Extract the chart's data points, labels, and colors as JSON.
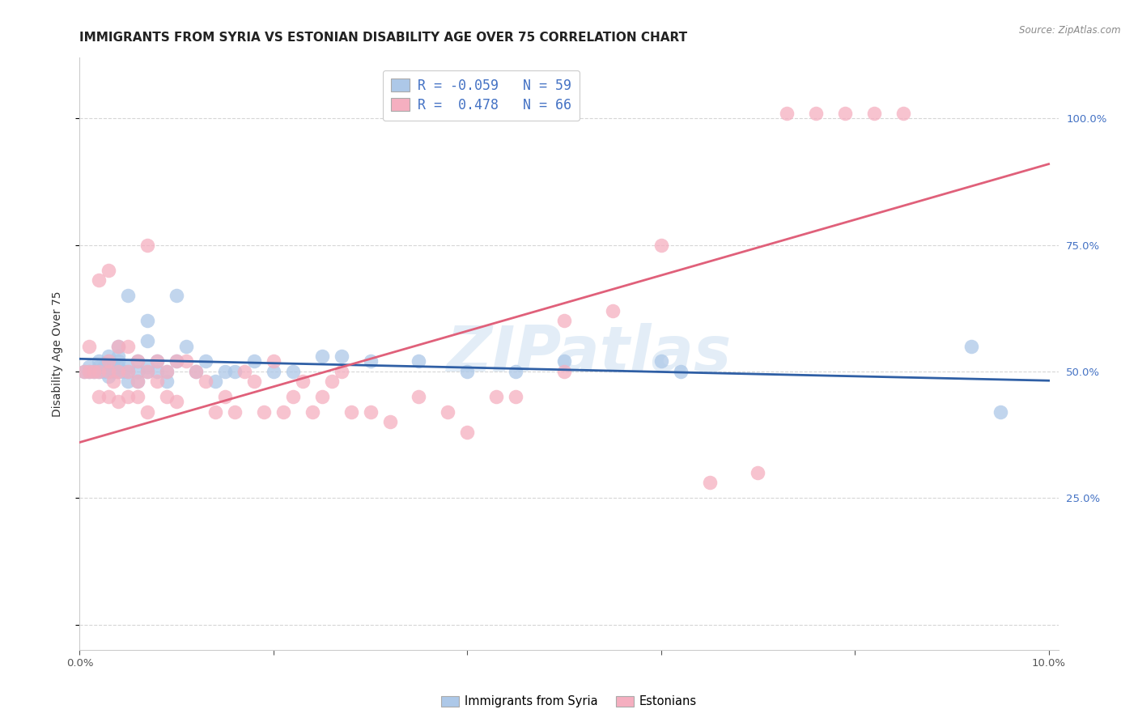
{
  "title": "IMMIGRANTS FROM SYRIA VS ESTONIAN DISABILITY AGE OVER 75 CORRELATION CHART",
  "source": "Source: ZipAtlas.com",
  "ylabel": "Disability Age Over 75",
  "watermark": "ZIPatlas",
  "legend_label1": "Immigrants from Syria",
  "legend_label2": "Estonians",
  "R1": -0.059,
  "N1": 59,
  "R2": 0.478,
  "N2": 66,
  "color1": "#adc8e8",
  "color2": "#f5afc0",
  "line_color1": "#2f5fa5",
  "line_color2": "#e0607a",
  "xlim_min": 0.0,
  "xlim_max": 0.101,
  "ylim_min": -0.05,
  "ylim_max": 1.12,
  "blue_line_y0": 0.525,
  "blue_line_y1": 0.482,
  "pink_line_y0": 0.36,
  "pink_line_y1": 0.91,
  "background_color": "#ffffff",
  "grid_color": "#cccccc",
  "title_fontsize": 11,
  "axis_label_fontsize": 10,
  "tick_fontsize": 9.5,
  "right_tick_color": "#4472c4",
  "source_color": "#888888",
  "syria_x": [
    0.0005,
    0.001,
    0.001,
    0.0015,
    0.002,
    0.002,
    0.002,
    0.0025,
    0.0025,
    0.003,
    0.003,
    0.003,
    0.003,
    0.003,
    0.0035,
    0.0035,
    0.004,
    0.004,
    0.004,
    0.004,
    0.004,
    0.0045,
    0.005,
    0.005,
    0.005,
    0.005,
    0.006,
    0.006,
    0.006,
    0.007,
    0.007,
    0.007,
    0.007,
    0.008,
    0.008,
    0.009,
    0.009,
    0.01,
    0.01,
    0.011,
    0.012,
    0.013,
    0.014,
    0.015,
    0.016,
    0.018,
    0.02,
    0.022,
    0.025,
    0.027,
    0.03,
    0.035,
    0.04,
    0.045,
    0.05,
    0.06,
    0.062,
    0.092,
    0.095
  ],
  "syria_y": [
    0.5,
    0.5,
    0.51,
    0.5,
    0.51,
    0.5,
    0.52,
    0.5,
    0.51,
    0.49,
    0.5,
    0.51,
    0.52,
    0.53,
    0.5,
    0.51,
    0.5,
    0.51,
    0.52,
    0.53,
    0.55,
    0.5,
    0.48,
    0.5,
    0.51,
    0.65,
    0.48,
    0.5,
    0.52,
    0.5,
    0.51,
    0.56,
    0.6,
    0.5,
    0.52,
    0.48,
    0.5,
    0.52,
    0.65,
    0.55,
    0.5,
    0.52,
    0.48,
    0.5,
    0.5,
    0.52,
    0.5,
    0.5,
    0.53,
    0.53,
    0.52,
    0.52,
    0.5,
    0.5,
    0.52,
    0.52,
    0.5,
    0.55,
    0.42
  ],
  "estonian_x": [
    0.0005,
    0.001,
    0.001,
    0.0015,
    0.002,
    0.002,
    0.002,
    0.003,
    0.003,
    0.003,
    0.003,
    0.0035,
    0.004,
    0.004,
    0.004,
    0.005,
    0.005,
    0.005,
    0.006,
    0.006,
    0.006,
    0.007,
    0.007,
    0.007,
    0.008,
    0.008,
    0.009,
    0.009,
    0.01,
    0.01,
    0.011,
    0.012,
    0.013,
    0.014,
    0.015,
    0.016,
    0.017,
    0.018,
    0.019,
    0.02,
    0.021,
    0.022,
    0.023,
    0.024,
    0.025,
    0.026,
    0.027,
    0.028,
    0.03,
    0.032,
    0.035,
    0.038,
    0.04,
    0.043,
    0.045,
    0.05,
    0.055,
    0.06,
    0.065,
    0.07,
    0.073,
    0.076,
    0.079,
    0.082,
    0.085,
    0.05
  ],
  "estonian_y": [
    0.5,
    0.5,
    0.55,
    0.5,
    0.45,
    0.5,
    0.68,
    0.45,
    0.5,
    0.52,
    0.7,
    0.48,
    0.44,
    0.5,
    0.55,
    0.45,
    0.5,
    0.55,
    0.45,
    0.48,
    0.52,
    0.42,
    0.5,
    0.75,
    0.48,
    0.52,
    0.45,
    0.5,
    0.44,
    0.52,
    0.52,
    0.5,
    0.48,
    0.42,
    0.45,
    0.42,
    0.5,
    0.48,
    0.42,
    0.52,
    0.42,
    0.45,
    0.48,
    0.42,
    0.45,
    0.48,
    0.5,
    0.42,
    0.42,
    0.4,
    0.45,
    0.42,
    0.38,
    0.45,
    0.45,
    0.6,
    0.62,
    0.75,
    0.28,
    0.3,
    1.01,
    1.01,
    1.01,
    1.01,
    1.01,
    0.5
  ]
}
